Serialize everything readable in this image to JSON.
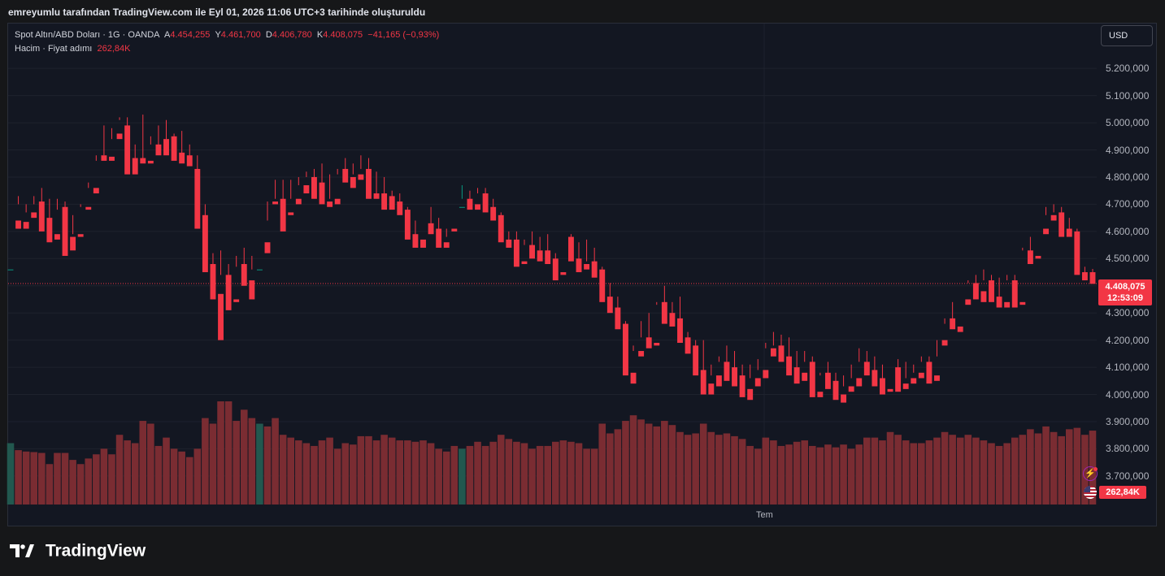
{
  "header": {
    "caption": "emreyumlu tarafından TradingView.com ile Eyl 01, 2026 11:06 UTC+3 tarihinde oluşturuldu"
  },
  "legend": {
    "symbol": "Spot Altın/ABD Doları · 1G · OANDA",
    "open_label": "A",
    "open": "4.454,255",
    "high_label": "Y",
    "high": "4.461,700",
    "low_label": "D",
    "low": "4.406,780",
    "close_label": "K",
    "close": "4.408,075",
    "change": "−41,165 (−0,93%)",
    "volume_label": "Hacim · Fiyat adımı",
    "volume": "262,84K"
  },
  "currency_button": "USD",
  "price_tag": {
    "price": "4.408,075",
    "countdown": "12:53:09"
  },
  "volume_tag": "262,84K",
  "brand": "TradingView",
  "icons": {
    "logo": "tradingview-logo-icon",
    "alert": "flash-icon",
    "flag": "us-flag-icon"
  },
  "colors": {
    "up": "#089981",
    "down": "#f23645",
    "up_volume": "#22584f",
    "down_volume": "#7a2c32",
    "background": "#131722",
    "grid": "#1e222d"
  },
  "chart_data": {
    "type": "candlestick",
    "y_axis_ticks": [
      "5.200,000",
      "5.100,000",
      "5.000,000",
      "4.900,000",
      "4.800,000",
      "4.700,000",
      "4.600,000",
      "4.500,000",
      "4.400,000",
      "4.300,000",
      "4.200,000",
      "4.100,000",
      "4.000,000",
      "3.900,000",
      "3.800,000",
      "3.700,000"
    ],
    "y_tick_values": [
      5200,
      5100,
      5000,
      4900,
      4800,
      4700,
      4600,
      4500,
      4400,
      4300,
      4200,
      4100,
      4000,
      3900,
      3800,
      3700
    ],
    "x_axis_labels": [
      "Tem"
    ],
    "ylim": [
      3595,
      5365
    ],
    "last_price": 4408.075,
    "volume_max": 440,
    "candles": [
      [
        4460,
        4650,
        4650,
        4460,
        220
      ],
      [
        4640,
        4730,
        4700,
        4610,
        195
      ],
      [
        4635,
        4700,
        4670,
        4610,
        190
      ],
      [
        4670,
        4730,
        4700,
        4650,
        188
      ],
      [
        4710,
        4760,
        4650,
        4600,
        185
      ],
      [
        4650,
        4720,
        4580,
        4560,
        145
      ],
      [
        4590,
        4720,
        4680,
        4570,
        185
      ],
      [
        4690,
        4710,
        4570,
        4510,
        185
      ],
      [
        4580,
        4660,
        4590,
        4530,
        160
      ],
      [
        4590,
        4700,
        4690,
        4580,
        145
      ],
      [
        4690,
        4780,
        4760,
        4680,
        165
      ],
      [
        4760,
        4880,
        4860,
        4740,
        180
      ],
      [
        4880,
        4990,
        4880,
        4860,
        200
      ],
      [
        4875,
        4980,
        4940,
        4860,
        180
      ],
      [
        4960,
        5020,
        5010,
        4940,
        250
      ],
      [
        4990,
        5020,
        4880,
        4810,
        230
      ],
      [
        4870,
        4920,
        4870,
        4810,
        220
      ],
      [
        4870,
        5030,
        4860,
        4850,
        300
      ],
      [
        4860,
        4950,
        4920,
        4850,
        290
      ],
      [
        4920,
        4990,
        4900,
        4880,
        210
      ],
      [
        4940,
        5010,
        4940,
        4880,
        240
      ],
      [
        4950,
        4960,
        4890,
        4860,
        200
      ],
      [
        4890,
        4970,
        4880,
        4850,
        190
      ],
      [
        4880,
        4920,
        4860,
        4840,
        170
      ],
      [
        4830,
        4880,
        4650,
        4610,
        200
      ],
      [
        4660,
        4700,
        4480,
        4450,
        310
      ],
      [
        4480,
        4520,
        4370,
        4350,
        290
      ],
      [
        4370,
        4530,
        4440,
        4200,
        370
      ],
      [
        4440,
        4480,
        4350,
        4310,
        370
      ],
      [
        4350,
        4510,
        4470,
        4340,
        300
      ],
      [
        4480,
        4540,
        4410,
        4400,
        340
      ],
      [
        4420,
        4510,
        4460,
        4350,
        310
      ],
      [
        4460,
        4560,
        4560,
        4460,
        290
      ],
      [
        4560,
        4640,
        4710,
        4520,
        280
      ],
      [
        4710,
        4790,
        4720,
        4700,
        310
      ],
      [
        4720,
        4790,
        4670,
        4600,
        250
      ],
      [
        4670,
        4790,
        4720,
        4660,
        240
      ],
      [
        4720,
        4800,
        4770,
        4700,
        230
      ],
      [
        4770,
        4820,
        4800,
        4740,
        220
      ],
      [
        4800,
        4830,
        4780,
        4720,
        210
      ],
      [
        4780,
        4850,
        4710,
        4700,
        230
      ],
      [
        4710,
        4810,
        4720,
        4690,
        240
      ],
      [
        4720,
        4810,
        4830,
        4700,
        200
      ],
      [
        4830,
        4870,
        4800,
        4780,
        220
      ],
      [
        4800,
        4850,
        4810,
        4760,
        215
      ],
      [
        4810,
        4880,
        4830,
        4790,
        245
      ],
      [
        4830,
        4870,
        4740,
        4720,
        245
      ],
      [
        4740,
        4820,
        4740,
        4720,
        230
      ],
      [
        4740,
        4800,
        4730,
        4680,
        250
      ],
      [
        4730,
        4750,
        4710,
        4680,
        240
      ],
      [
        4710,
        4740,
        4680,
        4660,
        230
      ],
      [
        4680,
        4690,
        4590,
        4570,
        230
      ],
      [
        4590,
        4640,
        4570,
        4540,
        225
      ],
      [
        4570,
        4630,
        4630,
        4540,
        230
      ],
      [
        4630,
        4690,
        4610,
        4590,
        220
      ],
      [
        4610,
        4650,
        4560,
        4540,
        200
      ],
      [
        4560,
        4580,
        4610,
        4540,
        190
      ],
      [
        4610,
        4690,
        4690,
        4600,
        210
      ],
      [
        4690,
        4770,
        4720,
        4690,
        200
      ],
      [
        4720,
        4750,
        4700,
        4680,
        210
      ],
      [
        4700,
        4760,
        4740,
        4680,
        225
      ],
      [
        4740,
        4760,
        4690,
        4670,
        210
      ],
      [
        4690,
        4720,
        4660,
        4640,
        225
      ],
      [
        4660,
        4670,
        4570,
        4560,
        250
      ],
      [
        4570,
        4600,
        4560,
        4540,
        235
      ],
      [
        4570,
        4600,
        4490,
        4470,
        225
      ],
      [
        4490,
        4570,
        4550,
        4480,
        220
      ],
      [
        4550,
        4600,
        4530,
        4500,
        200
      ],
      [
        4530,
        4580,
        4530,
        4490,
        210
      ],
      [
        4530,
        4590,
        4500,
        4480,
        210
      ],
      [
        4500,
        4520,
        4450,
        4420,
        225
      ],
      [
        4450,
        4580,
        4580,
        4440,
        230
      ],
      [
        4580,
        4590,
        4500,
        4490,
        225
      ],
      [
        4500,
        4560,
        4470,
        4450,
        220
      ],
      [
        4480,
        4570,
        4490,
        4460,
        200
      ],
      [
        4490,
        4540,
        4460,
        4430,
        200
      ],
      [
        4460,
        4470,
        4360,
        4340,
        290
      ],
      [
        4360,
        4410,
        4320,
        4300,
        255
      ],
      [
        4320,
        4360,
        4260,
        4240,
        270
      ],
      [
        4260,
        4270,
        4080,
        4070,
        300
      ],
      [
        4080,
        4180,
        4160,
        4040,
        320
      ],
      [
        4160,
        4270,
        4210,
        4140,
        305
      ],
      [
        4210,
        4300,
        4190,
        4170,
        290
      ],
      [
        4190,
        4330,
        4340,
        4180,
        280
      ],
      [
        4340,
        4400,
        4300,
        4260,
        300
      ],
      [
        4300,
        4340,
        4280,
        4250,
        285
      ],
      [
        4280,
        4360,
        4210,
        4190,
        260
      ],
      [
        4210,
        4230,
        4180,
        4150,
        250
      ],
      [
        4180,
        4200,
        4090,
        4070,
        255
      ],
      [
        4090,
        4200,
        4040,
        4000,
        290
      ],
      [
        4040,
        4110,
        4070,
        4000,
        260
      ],
      [
        4070,
        4140,
        4120,
        4030,
        250
      ],
      [
        4120,
        4180,
        4100,
        4050,
        255
      ],
      [
        4100,
        4160,
        4070,
        4030,
        245
      ],
      [
        4070,
        4110,
        4020,
        3990,
        235
      ],
      [
        4020,
        4110,
        4060,
        3980,
        210
      ],
      [
        4060,
        4130,
        4090,
        4030,
        200
      ],
      [
        4090,
        4190,
        4170,
        4060,
        240
      ],
      [
        4170,
        4230,
        4180,
        4140,
        230
      ],
      [
        4180,
        4220,
        4140,
        4120,
        210
      ],
      [
        4140,
        4210,
        4100,
        4070,
        215
      ],
      [
        4100,
        4160,
        4080,
        4040,
        225
      ],
      [
        4080,
        4160,
        4120,
        4050,
        230
      ],
      [
        4120,
        4140,
        4010,
        3990,
        210
      ],
      [
        4010,
        4070,
        4080,
        3990,
        205
      ],
      [
        4080,
        4120,
        4050,
        4020,
        215
      ],
      [
        4050,
        4080,
        4000,
        3980,
        205
      ],
      [
        4000,
        4070,
        4030,
        3970,
        215
      ],
      [
        4030,
        4110,
        4060,
        4010,
        200
      ],
      [
        4060,
        4170,
        4120,
        4030,
        215
      ],
      [
        4120,
        4160,
        4090,
        4070,
        240
      ],
      [
        4090,
        4140,
        4060,
        4030,
        240
      ],
      [
        4060,
        4110,
        4020,
        4000,
        230
      ],
      [
        4020,
        4100,
        4100,
        4010,
        260
      ],
      [
        4100,
        4130,
        4040,
        4010,
        250
      ],
      [
        4040,
        4120,
        4060,
        4020,
        230
      ],
      [
        4060,
        4110,
        4080,
        4040,
        220
      ],
      [
        4080,
        4140,
        4120,
        4060,
        220
      ],
      [
        4120,
        4140,
        4070,
        4040,
        230
      ],
      [
        4070,
        4140,
        4200,
        4050,
        240
      ],
      [
        4200,
        4260,
        4280,
        4180,
        260
      ],
      [
        4280,
        4340,
        4250,
        4240,
        250
      ],
      [
        4250,
        4350,
        4350,
        4230,
        240
      ],
      [
        4350,
        4420,
        4410,
        4330,
        250
      ],
      [
        4410,
        4440,
        4380,
        4350,
        240
      ],
      [
        4380,
        4460,
        4420,
        4340,
        230
      ],
      [
        4420,
        4440,
        4360,
        4340,
        220
      ],
      [
        4360,
        4430,
        4340,
        4320,
        210
      ],
      [
        4340,
        4440,
        4420,
        4320,
        220
      ],
      [
        4420,
        4440,
        4340,
        4320,
        240
      ],
      [
        4340,
        4540,
        4530,
        4330,
        250
      ],
      [
        4530,
        4580,
        4510,
        4480,
        270
      ],
      [
        4510,
        4610,
        4610,
        4500,
        255
      ],
      [
        4610,
        4690,
        4660,
        4590,
        280
      ],
      [
        4660,
        4700,
        4670,
        4640,
        260
      ],
      [
        4670,
        4690,
        4610,
        4580,
        245
      ],
      [
        4610,
        4650,
        4600,
        4580,
        270
      ],
      [
        4600,
        4610,
        4450,
        4440,
        275
      ],
      [
        4450,
        4470,
        4430,
        4420,
        250
      ],
      [
        4450,
        4462,
        4408,
        4407,
        265
      ]
    ]
  }
}
